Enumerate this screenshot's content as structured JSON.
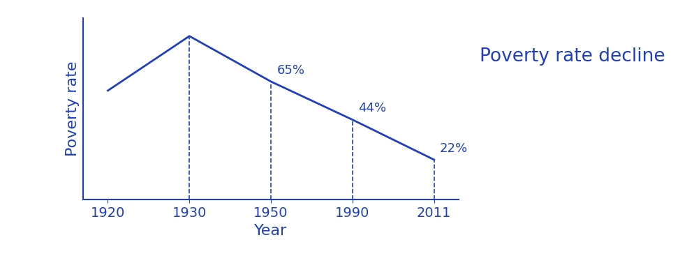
{
  "chart_data": {
    "type": "line",
    "categories": [
      "1920",
      "1930",
      "1950",
      "1990",
      "2011"
    ],
    "values": [
      60,
      90,
      65,
      44,
      22
    ],
    "value_labels": [
      null,
      null,
      "65%",
      "44%",
      "22%"
    ],
    "data_labels": true,
    "x_label": "Year",
    "y_label": "Poverty rate",
    "annotation": "Poverty rate decline",
    "color": "#1f3fbf",
    "ylim": [
      0,
      100
    ],
    "tick_labels": "x"
  }
}
